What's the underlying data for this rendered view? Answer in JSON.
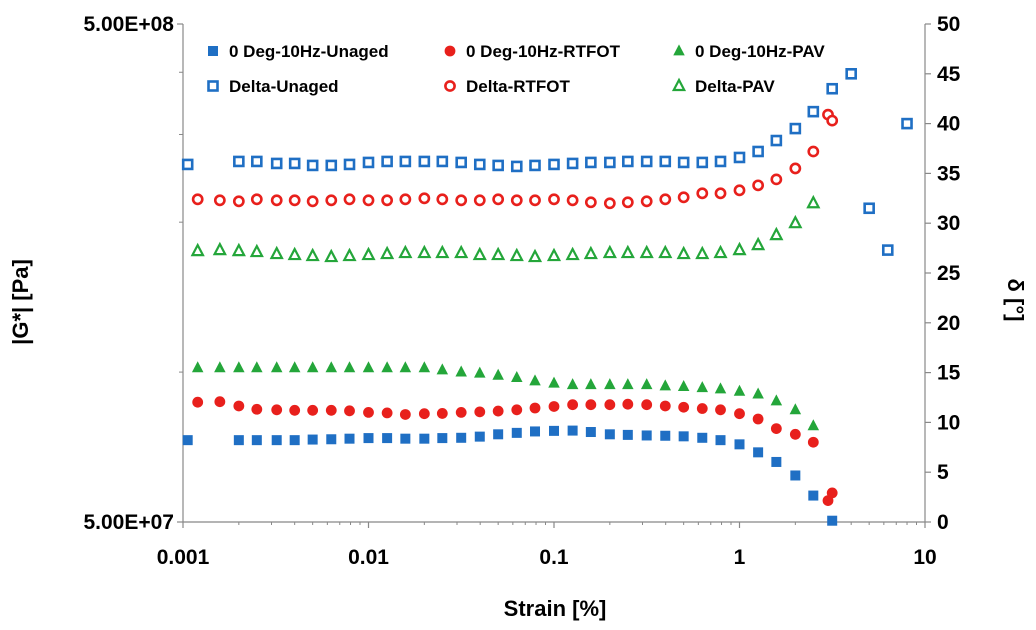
{
  "chart_data": {
    "type": "scatter",
    "xlabel": "Strain [%]",
    "ylabel_left": "|G*|  [Pa]",
    "ylabel_right": "δ [°]",
    "x_scale": "log",
    "y_left_scale": "log",
    "xlim": [
      0.001,
      10
    ],
    "ylim_left": [
      50000000,
      500000000
    ],
    "ylim_right": [
      0,
      50
    ],
    "x_tick_labels": [
      "0.001",
      "0.01",
      "0.1",
      "1",
      "10"
    ],
    "y_left_tick_labels": [
      "5.00E+07",
      "5.00E+08"
    ],
    "y_right_tick_labels": [
      "0",
      "5",
      "10",
      "15",
      "20",
      "25",
      "30",
      "35",
      "40",
      "45",
      "50"
    ],
    "legend_position": "top",
    "series": [
      {
        "name": "0 Deg-10Hz-Unaged",
        "axis": "left",
        "marker": "square",
        "filled": true,
        "color": "#1f6fc4",
        "points": [
          [
            0.00106,
            73000000.0
          ],
          [
            0.002,
            73000000.0
          ],
          [
            0.0025,
            73000000.0
          ],
          [
            0.0032,
            73000000.0
          ],
          [
            0.004,
            73000000.0
          ],
          [
            0.005,
            73200000.0
          ],
          [
            0.0063,
            73300000.0
          ],
          [
            0.0079,
            73500000.0
          ],
          [
            0.01,
            73700000.0
          ],
          [
            0.0126,
            73700000.0
          ],
          [
            0.0158,
            73500000.0
          ],
          [
            0.02,
            73500000.0
          ],
          [
            0.025,
            73700000.0
          ],
          [
            0.0316,
            73800000.0
          ],
          [
            0.0398,
            74200000.0
          ],
          [
            0.05,
            75000000.0
          ],
          [
            0.063,
            75500000.0
          ],
          [
            0.079,
            76000000.0
          ],
          [
            0.1,
            76200000.0
          ],
          [
            0.126,
            76300000.0
          ],
          [
            0.158,
            75800000.0
          ],
          [
            0.2,
            75000000.0
          ],
          [
            0.25,
            74800000.0
          ],
          [
            0.316,
            74600000.0
          ],
          [
            0.398,
            74500000.0
          ],
          [
            0.5,
            74300000.0
          ],
          [
            0.63,
            73800000.0
          ],
          [
            0.79,
            73000000.0
          ],
          [
            1.0,
            71600000.0
          ],
          [
            1.26,
            69000000.0
          ],
          [
            1.58,
            66000000.0
          ],
          [
            2.0,
            62000000.0
          ],
          [
            2.5,
            56500000.0
          ],
          [
            3.16,
            50300000.0
          ]
        ]
      },
      {
        "name": "0 Deg-10Hz-RTFOT",
        "axis": "left",
        "marker": "circle",
        "filled": true,
        "color": "#e8201c",
        "points": [
          [
            0.0012,
            87000000.0
          ],
          [
            0.00158,
            87200000.0
          ],
          [
            0.002,
            85500000.0
          ],
          [
            0.0025,
            84200000.0
          ],
          [
            0.0032,
            84000000.0
          ],
          [
            0.004,
            83800000.0
          ],
          [
            0.005,
            83800000.0
          ],
          [
            0.0063,
            83800000.0
          ],
          [
            0.0079,
            83600000.0
          ],
          [
            0.01,
            83000000.0
          ],
          [
            0.0126,
            82800000.0
          ],
          [
            0.0158,
            82200000.0
          ],
          [
            0.02,
            82500000.0
          ],
          [
            0.025,
            82600000.0
          ],
          [
            0.0316,
            83000000.0
          ],
          [
            0.0398,
            83200000.0
          ],
          [
            0.05,
            83500000.0
          ],
          [
            0.063,
            84000000.0
          ],
          [
            0.079,
            84700000.0
          ],
          [
            0.1,
            85300000.0
          ],
          [
            0.126,
            86000000.0
          ],
          [
            0.158,
            86000000.0
          ],
          [
            0.2,
            86000000.0
          ],
          [
            0.25,
            86200000.0
          ],
          [
            0.316,
            86000000.0
          ],
          [
            0.398,
            85500000.0
          ],
          [
            0.5,
            85000000.0
          ],
          [
            0.63,
            84500000.0
          ],
          [
            0.79,
            84000000.0
          ],
          [
            1.0,
            82500000.0
          ],
          [
            1.26,
            80500000.0
          ],
          [
            1.58,
            77000000.0
          ],
          [
            2.0,
            75000000.0
          ],
          [
            2.5,
            72300000.0
          ],
          [
            3.0,
            55200000.0
          ],
          [
            3.16,
            57200000.0
          ]
        ]
      },
      {
        "name": "0 Deg-10Hz-PAV",
        "axis": "left",
        "marker": "triangle",
        "filled": true,
        "color": "#24a63a",
        "points": [
          [
            0.0012,
            102000000.0
          ],
          [
            0.00158,
            102000000.0
          ],
          [
            0.002,
            102000000.0
          ],
          [
            0.0025,
            102000000.0
          ],
          [
            0.0032,
            102000000.0
          ],
          [
            0.004,
            102000000.0
          ],
          [
            0.005,
            102000000.0
          ],
          [
            0.0063,
            102000000.0
          ],
          [
            0.0079,
            102000000.0
          ],
          [
            0.01,
            102000000.0
          ],
          [
            0.0126,
            102000000.0
          ],
          [
            0.0158,
            102000000.0
          ],
          [
            0.02,
            102000000.0
          ],
          [
            0.025,
            101000000.0
          ],
          [
            0.0316,
            100000000.0
          ],
          [
            0.0398,
            99500000.0
          ],
          [
            0.05,
            98500000.0
          ],
          [
            0.063,
            97500000.0
          ],
          [
            0.079,
            96000000.0
          ],
          [
            0.1,
            95000000.0
          ],
          [
            0.126,
            94300000.0
          ],
          [
            0.158,
            94300000.0
          ],
          [
            0.2,
            94300000.0
          ],
          [
            0.25,
            94300000.0
          ],
          [
            0.316,
            94300000.0
          ],
          [
            0.398,
            93800000.0
          ],
          [
            0.5,
            93500000.0
          ],
          [
            0.63,
            93000000.0
          ],
          [
            0.79,
            92500000.0
          ],
          [
            1.0,
            91500000.0
          ],
          [
            1.26,
            90300000.0
          ],
          [
            1.58,
            87500000.0
          ],
          [
            2.0,
            84000000.0
          ],
          [
            2.5,
            78000000.0
          ]
        ]
      },
      {
        "name": "Delta-Unaged",
        "axis": "right",
        "marker": "square",
        "filled": false,
        "color": "#1f6fc4",
        "points": [
          [
            0.00106,
            35.9
          ],
          [
            0.002,
            36.2
          ],
          [
            0.0025,
            36.2
          ],
          [
            0.0032,
            36.0
          ],
          [
            0.004,
            36.0
          ],
          [
            0.005,
            35.8
          ],
          [
            0.0063,
            35.8
          ],
          [
            0.0079,
            35.9
          ],
          [
            0.01,
            36.1
          ],
          [
            0.0126,
            36.2
          ],
          [
            0.0158,
            36.2
          ],
          [
            0.02,
            36.2
          ],
          [
            0.025,
            36.2
          ],
          [
            0.0316,
            36.1
          ],
          [
            0.0398,
            35.9
          ],
          [
            0.05,
            35.8
          ],
          [
            0.063,
            35.7
          ],
          [
            0.079,
            35.8
          ],
          [
            0.1,
            35.9
          ],
          [
            0.126,
            36.0
          ],
          [
            0.158,
            36.1
          ],
          [
            0.2,
            36.1
          ],
          [
            0.25,
            36.2
          ],
          [
            0.316,
            36.2
          ],
          [
            0.398,
            36.2
          ],
          [
            0.5,
            36.1
          ],
          [
            0.63,
            36.1
          ],
          [
            0.79,
            36.2
          ],
          [
            1.0,
            36.6
          ],
          [
            1.26,
            37.2
          ],
          [
            1.58,
            38.3
          ],
          [
            2.0,
            39.5
          ],
          [
            2.5,
            41.2
          ],
          [
            3.16,
            43.5
          ],
          [
            4.0,
            45.0
          ],
          [
            5.0,
            31.5
          ],
          [
            6.3,
            27.3
          ],
          [
            8.0,
            40.0
          ]
        ]
      },
      {
        "name": "Delta-RTFOT",
        "axis": "right",
        "marker": "circle",
        "filled": false,
        "color": "#e8201c",
        "points": [
          [
            0.0012,
            32.4
          ],
          [
            0.00158,
            32.3
          ],
          [
            0.002,
            32.2
          ],
          [
            0.0025,
            32.4
          ],
          [
            0.0032,
            32.3
          ],
          [
            0.004,
            32.3
          ],
          [
            0.005,
            32.2
          ],
          [
            0.0063,
            32.3
          ],
          [
            0.0079,
            32.4
          ],
          [
            0.01,
            32.3
          ],
          [
            0.0126,
            32.3
          ],
          [
            0.0158,
            32.4
          ],
          [
            0.02,
            32.5
          ],
          [
            0.025,
            32.4
          ],
          [
            0.0316,
            32.3
          ],
          [
            0.0398,
            32.3
          ],
          [
            0.05,
            32.4
          ],
          [
            0.063,
            32.3
          ],
          [
            0.079,
            32.3
          ],
          [
            0.1,
            32.4
          ],
          [
            0.126,
            32.3
          ],
          [
            0.158,
            32.1
          ],
          [
            0.2,
            32.0
          ],
          [
            0.25,
            32.1
          ],
          [
            0.316,
            32.2
          ],
          [
            0.398,
            32.4
          ],
          [
            0.5,
            32.6
          ],
          [
            0.63,
            33.0
          ],
          [
            0.79,
            33.0
          ],
          [
            1.0,
            33.3
          ],
          [
            1.26,
            33.8
          ],
          [
            1.58,
            34.4
          ],
          [
            2.0,
            35.5
          ],
          [
            2.5,
            37.2
          ],
          [
            3.0,
            40.9
          ],
          [
            3.16,
            40.3
          ]
        ]
      },
      {
        "name": "Delta-PAV",
        "axis": "right",
        "marker": "triangle",
        "filled": false,
        "color": "#24a63a",
        "points": [
          [
            0.0012,
            27.2
          ],
          [
            0.00158,
            27.3
          ],
          [
            0.002,
            27.2
          ],
          [
            0.0025,
            27.1
          ],
          [
            0.0032,
            26.9
          ],
          [
            0.004,
            26.8
          ],
          [
            0.005,
            26.7
          ],
          [
            0.0063,
            26.6
          ],
          [
            0.0079,
            26.7
          ],
          [
            0.01,
            26.8
          ],
          [
            0.0126,
            26.9
          ],
          [
            0.0158,
            27.0
          ],
          [
            0.02,
            27.0
          ],
          [
            0.025,
            27.0
          ],
          [
            0.0316,
            27.0
          ],
          [
            0.0398,
            26.8
          ],
          [
            0.05,
            26.8
          ],
          [
            0.063,
            26.7
          ],
          [
            0.079,
            26.6
          ],
          [
            0.1,
            26.7
          ],
          [
            0.126,
            26.8
          ],
          [
            0.158,
            26.9
          ],
          [
            0.2,
            27.0
          ],
          [
            0.25,
            27.0
          ],
          [
            0.316,
            27.0
          ],
          [
            0.398,
            27.0
          ],
          [
            0.5,
            26.9
          ],
          [
            0.63,
            26.9
          ],
          [
            0.79,
            27.0
          ],
          [
            1.0,
            27.3
          ],
          [
            1.26,
            27.8
          ],
          [
            1.58,
            28.8
          ],
          [
            2.0,
            30.0
          ],
          [
            2.5,
            32.0
          ]
        ]
      }
    ]
  }
}
